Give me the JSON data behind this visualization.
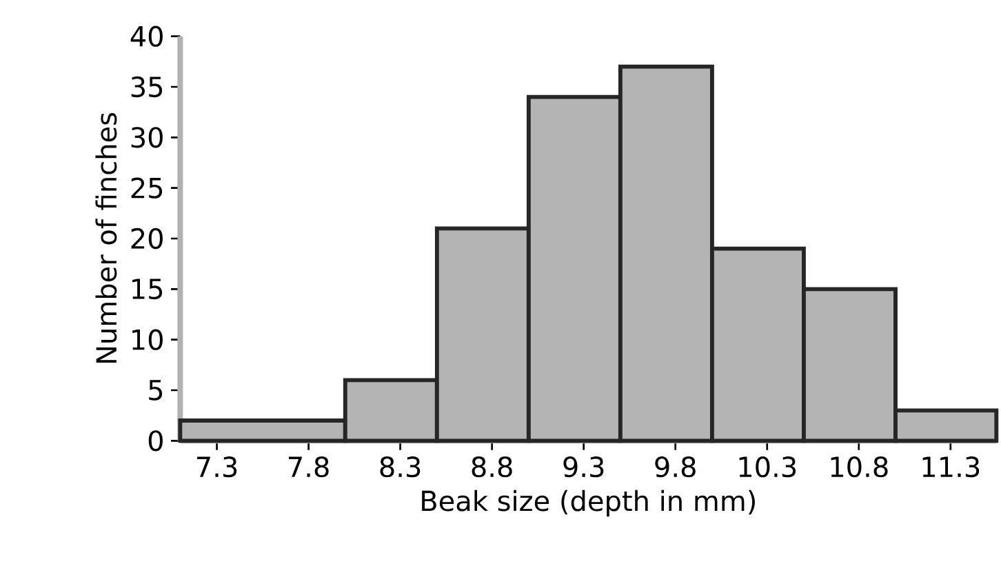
{
  "chart_data": {
    "type": "histogram",
    "xlabel": "Beak size (depth in mm)",
    "ylabel": "Number of finches",
    "bins": [
      7.1,
      8.0,
      8.5,
      9.0,
      9.5,
      10.0,
      10.5,
      11.0,
      11.55
    ],
    "values": [
      2,
      6,
      21,
      34,
      37,
      19,
      15,
      3
    ],
    "color": "#b4b4b4",
    "xlim": [
      7.1,
      11.55
    ],
    "ylim": [
      0,
      40
    ],
    "xticks": [
      7.3,
      7.8,
      8.3,
      8.8,
      9.3,
      9.8,
      10.3,
      10.8,
      11.3
    ],
    "yticks": [
      0,
      5,
      10,
      15,
      20,
      25,
      30,
      35,
      40
    ],
    "grid": false
  }
}
